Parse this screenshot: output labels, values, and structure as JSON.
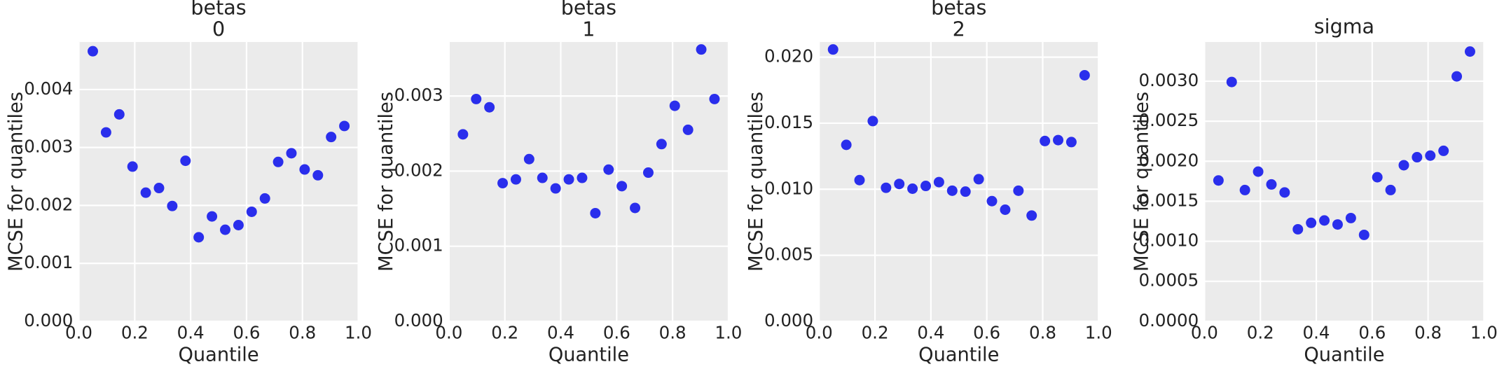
{
  "chart_data": [
    {
      "type": "scatter",
      "title": [
        "betas",
        "0"
      ],
      "xlabel": "Quantile",
      "ylabel": "MCSE for quantiles",
      "color": "#2a2eec",
      "grid": true,
      "x": [
        0.05,
        0.0974,
        0.1447,
        0.1921,
        0.2395,
        0.2868,
        0.3342,
        0.3816,
        0.4289,
        0.4763,
        0.5237,
        0.5711,
        0.6184,
        0.6658,
        0.7132,
        0.7605,
        0.8079,
        0.8553,
        0.9026,
        0.95
      ],
      "values": [
        0.00466,
        0.00326,
        0.00357,
        0.00267,
        0.00222,
        0.0023,
        0.00199,
        0.00277,
        0.00145,
        0.00181,
        0.00158,
        0.00166,
        0.00189,
        0.00212,
        0.00275,
        0.0029,
        0.00262,
        0.00252,
        0.00318,
        0.00337
      ],
      "xlim": [
        0,
        1
      ],
      "xticks": [
        {
          "value": 0,
          "label": "0.0"
        },
        0.2,
        0.4,
        0.6,
        0.8,
        {
          "value": 1,
          "label": "1.0"
        }
      ],
      "ylim": [
        0,
        0.00482
      ],
      "yticks": [
        {
          "value": 0,
          "label": "0.000"
        },
        0.001,
        0.002,
        0.003,
        0.004
      ]
    },
    {
      "type": "scatter",
      "title": [
        "betas",
        "1"
      ],
      "xlabel": "Quantile",
      "ylabel": "MCSE for quantiles",
      "color": "#2a2eec",
      "grid": true,
      "x": [
        0.05,
        0.0974,
        0.1447,
        0.1921,
        0.2395,
        0.2868,
        0.3342,
        0.3816,
        0.4289,
        0.4763,
        0.5237,
        0.5711,
        0.6184,
        0.6658,
        0.7132,
        0.7605,
        0.8079,
        0.8553,
        0.9026,
        0.95
      ],
      "values": [
        0.00249,
        0.00296,
        0.00285,
        0.00184,
        0.00189,
        0.00216,
        0.00191,
        0.00177,
        0.00189,
        0.00191,
        0.00144,
        0.00202,
        0.0018,
        0.00151,
        0.00198,
        0.00236,
        0.00287,
        0.00255,
        0.00362,
        0.00296
      ],
      "xlim": [
        0,
        1
      ],
      "xticks": [
        {
          "value": 0,
          "label": "0.0"
        },
        0.2,
        0.4,
        0.6,
        0.8,
        {
          "value": 1,
          "label": "1.0"
        }
      ],
      "ylim": [
        0,
        0.00372
      ],
      "yticks": [
        {
          "value": 0,
          "label": "0.000"
        },
        0.001,
        0.002,
        0.003
      ]
    },
    {
      "type": "scatter",
      "title": [
        "betas",
        "2"
      ],
      "xlabel": "Quantile",
      "ylabel": "MCSE for quantiles",
      "color": "#2a2eec",
      "grid": true,
      "x": [
        0.05,
        0.0974,
        0.1447,
        0.1921,
        0.2395,
        0.2868,
        0.3342,
        0.3816,
        0.4289,
        0.4763,
        0.5237,
        0.5711,
        0.6184,
        0.6658,
        0.7132,
        0.7605,
        0.8079,
        0.8553,
        0.9026,
        0.95
      ],
      "values": [
        0.02058,
        0.01336,
        0.01069,
        0.01516,
        0.01011,
        0.0104,
        0.01004,
        0.01025,
        0.01054,
        0.00989,
        0.00982,
        0.01076,
        0.0091,
        0.00845,
        0.00989,
        0.00801,
        0.01365,
        0.01372,
        0.01357,
        0.01863
      ],
      "xlim": [
        0,
        1
      ],
      "xticks": [
        {
          "value": 0,
          "label": "0.0"
        },
        0.2,
        0.4,
        0.6,
        0.8,
        {
          "value": 1,
          "label": "1.0"
        }
      ],
      "ylim": [
        0,
        0.02115
      ],
      "yticks": [
        {
          "value": 0,
          "label": "0.000"
        },
        0.005,
        {
          "value": 0.01,
          "label": "0.010"
        },
        0.015,
        {
          "value": 0.02,
          "label": "0.020"
        }
      ]
    },
    {
      "type": "scatter",
      "title": [
        "sigma"
      ],
      "xlabel": "Quantile",
      "ylabel": "MCSE for quantiles",
      "color": "#2a2eec",
      "grid": true,
      "x": [
        0.05,
        0.0974,
        0.1447,
        0.1921,
        0.2395,
        0.2868,
        0.3342,
        0.3816,
        0.4289,
        0.4763,
        0.5237,
        0.5711,
        0.6184,
        0.6658,
        0.7132,
        0.7605,
        0.8079,
        0.8553,
        0.9026,
        0.95
      ],
      "values": [
        0.00176,
        0.00299,
        0.00164,
        0.00187,
        0.00171,
        0.00161,
        0.00115,
        0.00123,
        0.00126,
        0.00121,
        0.00129,
        0.00108,
        0.0018,
        0.00164,
        0.00195,
        0.00205,
        0.00207,
        0.00213,
        0.00306,
        0.00337
      ],
      "xlim": [
        0,
        1
      ],
      "xticks": [
        {
          "value": 0,
          "label": "0.0"
        },
        0.2,
        0.4,
        0.6,
        0.8,
        {
          "value": 1,
          "label": "1.0"
        }
      ],
      "ylim": [
        0,
        0.00349
      ],
      "yticks": [
        {
          "value": 0,
          "label": "0.0000"
        },
        {
          "value": 0.0005,
          "label": "0.0005"
        },
        {
          "value": 0.001,
          "label": "0.0010"
        },
        {
          "value": 0.0015,
          "label": "0.0015"
        },
        {
          "value": 0.002,
          "label": "0.0020"
        },
        {
          "value": 0.0025,
          "label": "0.0025"
        },
        {
          "value": 0.003,
          "label": "0.0030"
        }
      ]
    }
  ]
}
